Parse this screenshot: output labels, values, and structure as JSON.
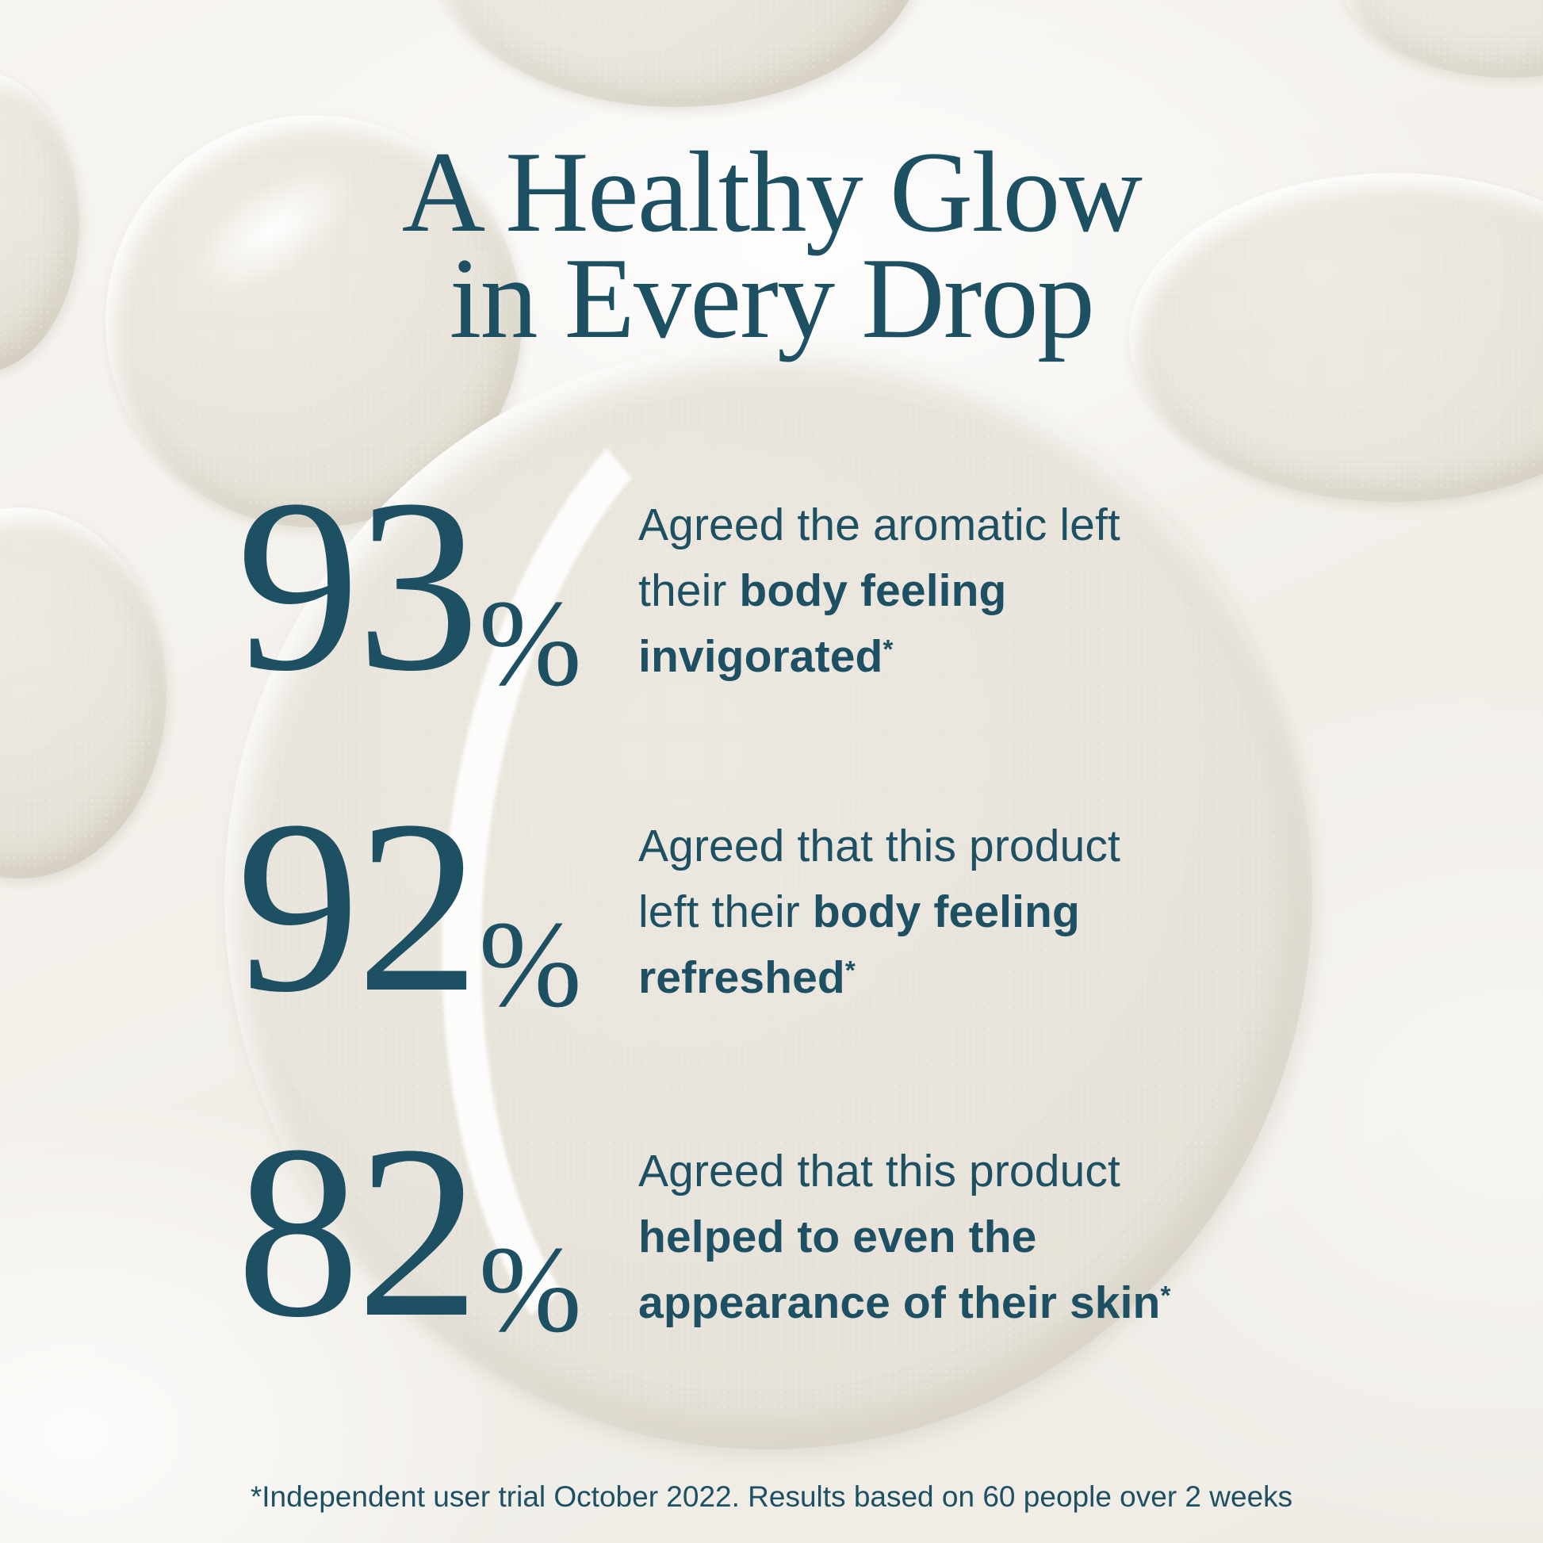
{
  "theme": {
    "ink": "#1e5063",
    "background": "#f3f0ec",
    "droplet": "#e8e4db"
  },
  "title": {
    "line1": "A Healthy Glow",
    "line2": "in Every Drop"
  },
  "stats": [
    {
      "value": "93",
      "percent_sign": "%",
      "lines": [
        {
          "pre": "Agreed the aromatic left",
          "bold": "",
          "sup": ""
        },
        {
          "pre": "their ",
          "bold": "body feeling",
          "sup": ""
        },
        {
          "pre": "",
          "bold": "invigorated",
          "sup": "*"
        }
      ]
    },
    {
      "value": "92",
      "percent_sign": "%",
      "lines": [
        {
          "pre": "Agreed that this product",
          "bold": "",
          "sup": ""
        },
        {
          "pre": "left their ",
          "bold": "body feeling",
          "sup": ""
        },
        {
          "pre": "",
          "bold": "refreshed",
          "sup": "*"
        }
      ]
    },
    {
      "value": "82",
      "percent_sign": "%",
      "lines": [
        {
          "pre": "Agreed that this product",
          "bold": "",
          "sup": ""
        },
        {
          "pre": "",
          "bold": "helped to even the",
          "sup": ""
        },
        {
          "pre": "",
          "bold": "appearance of their skin",
          "sup": "*"
        }
      ]
    }
  ],
  "footnote": "*Independent user trial October 2022. Results based on 60 people over 2 weeks"
}
